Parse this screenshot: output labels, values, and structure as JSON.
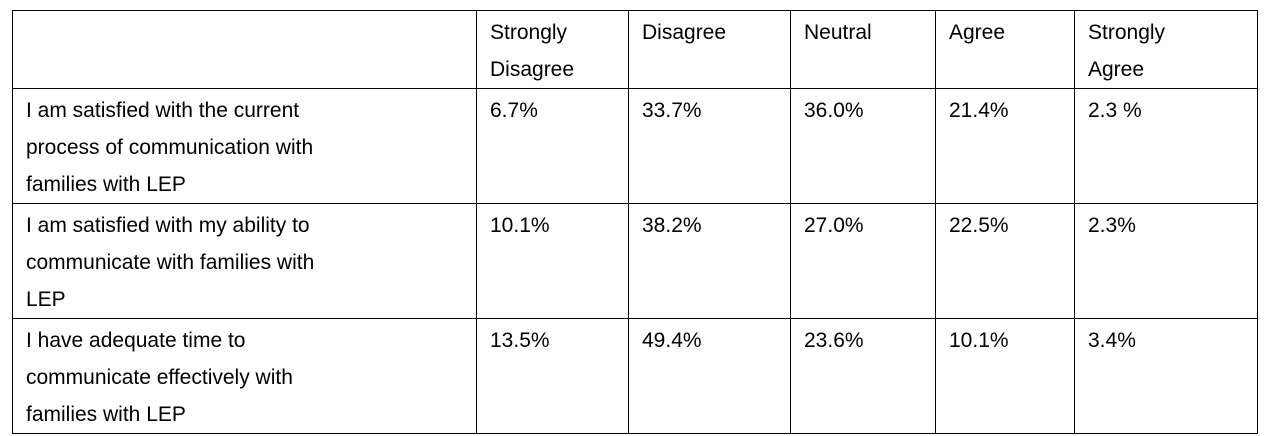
{
  "table": {
    "columns": [
      [
        "Strongly",
        "Disagree"
      ],
      [
        "Disagree"
      ],
      [
        "Neutral"
      ],
      [
        "Agree"
      ],
      [
        "Strongly",
        "Agree"
      ]
    ],
    "rows": [
      {
        "label": [
          "I am satisfied with the current",
          "process of communication with",
          "families with LEP"
        ],
        "cells": [
          "6.7%",
          "33.7%",
          "36.0%",
          "21.4%",
          "2.3 %"
        ]
      },
      {
        "label": [
          "I am satisfied with my ability to",
          "communicate with families with",
          "LEP"
        ],
        "cells": [
          "10.1%",
          "38.2%",
          "27.0%",
          "22.5%",
          "2.3%"
        ]
      },
      {
        "label": [
          "I have adequate time to",
          "communicate effectively with",
          "families with LEP"
        ],
        "cells": [
          "13.5%",
          "49.4%",
          "23.6%",
          "10.1%",
          "3.4%"
        ]
      }
    ]
  }
}
